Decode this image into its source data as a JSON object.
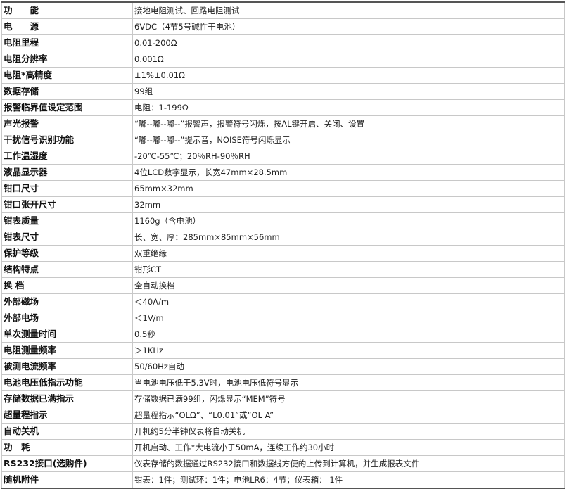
{
  "rows": [
    {
      "label": "功　　能",
      "value": "接地电阻测试、回路电阻测试"
    },
    {
      "label": "电　　源",
      "value": "6VDC（4节5号碱性干电池）"
    },
    {
      "label": "电阻里程",
      "value": "0.01-200Ω"
    },
    {
      "label": "电阻分辨率",
      "value": "0.001Ω"
    },
    {
      "label": "电阻*高精度",
      "value": "±1%±0.01Ω"
    },
    {
      "label": "数据存储",
      "value": "99组"
    },
    {
      "label": "报警临界值设定范围",
      "value": "电阻：1-199Ω"
    },
    {
      "label": "声光报警",
      "value": "“嘟--嘟--嘟--”报警声，报警符号闪烁，按AL键开启、关闭、设置"
    },
    {
      "label": "干扰信号识别功能",
      "value": "“嘟--嘟--嘟--”提示音，NOISE符号闪烁显示"
    },
    {
      "label": "工作温湿度",
      "value": "-20℃-55℃；20％RH-90％RH"
    },
    {
      "label": "液晶显示器",
      "value": "4位LCD数字显示，长宽47mm×28.5mm"
    },
    {
      "label": "钳口尺寸",
      "value": "65mm×32mm"
    },
    {
      "label": "钳口张开尺寸",
      "value": "32mm"
    },
    {
      "label": "钳表质量",
      "value": "1160g（含电池）"
    },
    {
      "label": "钳表尺寸",
      "value": "长、宽、厚：285mm×85mm×56mm"
    },
    {
      "label": "保护等级",
      "value": "双重绝缘"
    },
    {
      "label": "结构特点",
      "value": "钳形CT"
    },
    {
      "label": "换 档",
      "value": "全自动换档"
    },
    {
      "label": "外部磁场",
      "value": "＜40A/m"
    },
    {
      "label": "外部电场",
      "value": "＜1V/m"
    },
    {
      "label": "单次测量时间",
      "value": "0.5秒"
    },
    {
      "label": "电阻测量频率",
      "value": "＞1KHz"
    },
    {
      "label": "被测电流频率",
      "value": "50/60Hz自动"
    },
    {
      "label": "电池电压低指示功能",
      "value": "当电池电压低于5.3V时，电池电压低符号显示"
    },
    {
      "label": "存储数据已满指示",
      "value": "存储数据已满99组，闪烁显示“MEM”符号"
    },
    {
      "label": "超量程指示",
      "value": "超量程指示“OLΩ”、“L0.01”或“OL A”"
    },
    {
      "label": "自动关机",
      "value": "开机约5分半钟仪表将自动关机"
    },
    {
      "label": "功　耗",
      "value": "开机启动、工作*大电流小于50mA，连续工作约30小时"
    },
    {
      "label": "RS232接口(选购件)",
      "value": "仪表存储的数据通过RS232接口和数据线方便的上传到计算机，并生成报表文件"
    },
    {
      "label": "随机附件",
      "value": "钳表：1件；测试环：1件；电池LR6：4节；仪表箱： 1件"
    }
  ]
}
